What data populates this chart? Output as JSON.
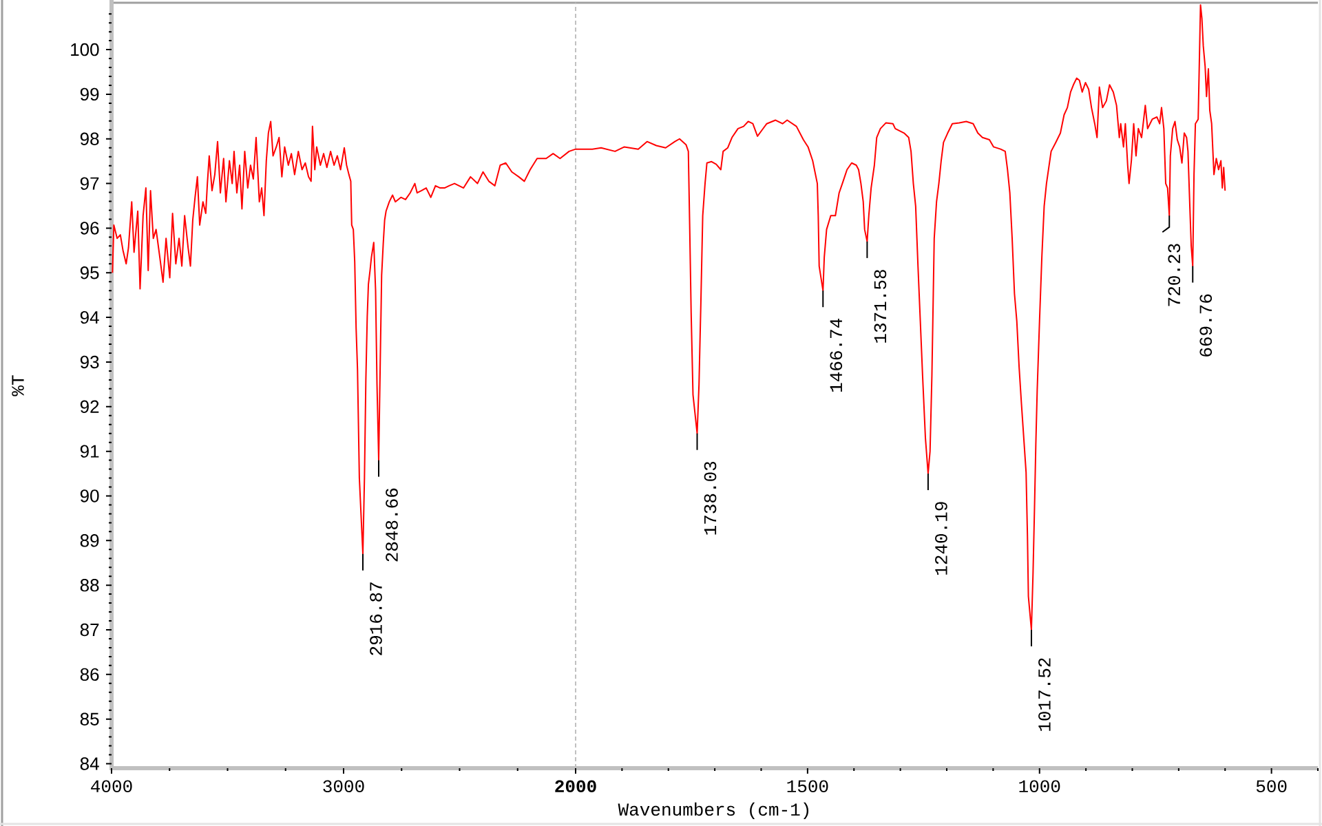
{
  "chart_data": [
    {
      "type": "line",
      "ylabel": "%T",
      "x": [
        3996,
        3990,
        3976,
        3962,
        3951,
        3937,
        3927,
        3913,
        3903,
        3887,
        3877,
        3864,
        3852,
        3842,
        3832,
        3820,
        3808,
        3792,
        3778,
        3765,
        3749,
        3737,
        3723,
        3709,
        3697,
        3685,
        3670,
        3660,
        3650,
        3640,
        3630,
        3620,
        3606,
        3594,
        3587,
        3579,
        3567,
        3555,
        3543,
        3531,
        3517,
        3507,
        3492,
        3480,
        3472,
        3460,
        3448,
        3438,
        3426,
        3413,
        3401,
        3389,
        3377,
        3363,
        3353,
        3343,
        3333,
        3324,
        3314,
        3304,
        3290,
        3278,
        3266,
        3254,
        3238,
        3225,
        3211,
        3195,
        3179,
        3165,
        3151,
        3140,
        3134,
        3124,
        3116,
        3100,
        3086,
        3072,
        3056,
        3041,
        3027,
        3013,
        2997,
        2987,
        2977,
        2969,
        2965,
        2958,
        2952,
        2946,
        2940,
        2932,
        2916.87,
        2910,
        2904,
        2898,
        2893,
        2886,
        2880,
        2870,
        2862,
        2856,
        2848.66,
        2842,
        2836,
        2829,
        2823,
        2817,
        2803,
        2789,
        2777,
        2753,
        2733,
        2713,
        2693,
        2683,
        2664,
        2644,
        2624,
        2604,
        2584,
        2565,
        2545,
        2522,
        2483,
        2453,
        2423,
        2399,
        2374,
        2348,
        2325,
        2301,
        2275,
        2245,
        2221,
        2196,
        2166,
        2127,
        2097,
        2067,
        2028,
        2000
      ],
      "series": [
        {
          "color": "#ff0000",
          "values": [
            95.0,
            96.07,
            95.77,
            95.85,
            95.51,
            95.2,
            95.56,
            96.59,
            95.46,
            96.38,
            94.64,
            96.28,
            96.9,
            95.05,
            96.84,
            95.77,
            95.97,
            95.35,
            94.79,
            95.77,
            94.89,
            96.33,
            95.2,
            95.77,
            95.15,
            96.28,
            95.56,
            95.15,
            96.18,
            96.69,
            97.15,
            96.07,
            96.59,
            96.33,
            97.0,
            97.62,
            96.84,
            97.2,
            97.94,
            96.79,
            97.56,
            96.59,
            97.51,
            97.0,
            97.72,
            96.79,
            97.41,
            96.43,
            97.72,
            96.9,
            97.41,
            97.1,
            98.03,
            96.59,
            96.9,
            96.28,
            97.51,
            98.13,
            98.39,
            97.62,
            97.82,
            98.03,
            97.15,
            97.82,
            97.41,
            97.67,
            97.2,
            97.72,
            97.31,
            97.46,
            97.15,
            97.05,
            98.28,
            97.31,
            97.82,
            97.41,
            97.67,
            97.36,
            97.72,
            97.41,
            97.62,
            97.31,
            97.8,
            97.41,
            97.2,
            97.05,
            96.07,
            95.97,
            95.25,
            93.76,
            92.84,
            90.4,
            88.7,
            90.4,
            92.6,
            94.02,
            94.74,
            95.05,
            95.35,
            95.68,
            94.6,
            92.5,
            90.8,
            93.0,
            94.94,
            95.66,
            96.18,
            96.38,
            96.59,
            96.74,
            96.59,
            96.69,
            96.64,
            96.79,
            97.0,
            96.79,
            96.84,
            96.9,
            96.69,
            96.95,
            96.9,
            96.9,
            96.95,
            97.0,
            96.9,
            97.15,
            97.0,
            97.26,
            97.05,
            96.95,
            97.41,
            97.46,
            97.26,
            97.15,
            97.05,
            97.31,
            97.56,
            97.56,
            97.67,
            97.56,
            97.72,
            97.77
          ]
        }
      ],
      "xlim": [
        4000,
        2000
      ],
      "ylim": [
        83.9,
        101.05
      ],
      "xticks": [
        4000,
        3000
      ],
      "yticks": [
        84,
        85,
        86,
        87,
        88,
        89,
        90,
        91,
        92,
        93,
        94,
        95,
        96,
        97,
        98,
        99,
        100
      ],
      "annotations": [
        {
          "text": "2916.87",
          "x": 2916.87,
          "y": 88.7
        },
        {
          "text": "2848.66",
          "x": 2848.66,
          "y": 90.8
        }
      ]
    },
    {
      "type": "line",
      "xlabel": "Wavenumbers (cm-1)",
      "x": [
        2000,
        1964,
        1945,
        1915,
        1895,
        1865,
        1846,
        1826,
        1806,
        1786,
        1776,
        1762,
        1757,
        1754,
        1751,
        1747,
        1738.03,
        1734,
        1730,
        1726,
        1721,
        1717,
        1707,
        1697,
        1687,
        1682,
        1672,
        1663,
        1650,
        1638,
        1628,
        1618,
        1608,
        1598,
        1588,
        1569,
        1554,
        1544,
        1524,
        1509,
        1499,
        1489,
        1479,
        1477,
        1475,
        1466.74,
        1464,
        1459,
        1450,
        1440,
        1432,
        1425,
        1415,
        1405,
        1395,
        1390,
        1385,
        1380,
        1377,
        1371.58,
        1368,
        1363,
        1356,
        1351,
        1343,
        1331,
        1316,
        1311,
        1292,
        1282,
        1277,
        1272,
        1267,
        1262,
        1257,
        1252,
        1246,
        1240.19,
        1236,
        1232,
        1229,
        1227,
        1222,
        1217,
        1212,
        1207,
        1198,
        1188,
        1173,
        1158,
        1143,
        1133,
        1123,
        1108,
        1099,
        1084,
        1074,
        1069,
        1064,
        1059,
        1054,
        1049,
        1044,
        1039,
        1034,
        1029,
        1026,
        1024,
        1017.52,
        1014,
        1011,
        1008,
        1005,
        1000,
        995,
        990,
        985,
        975,
        965,
        955,
        947,
        940,
        933,
        927,
        920,
        914,
        908,
        901,
        894,
        888,
        881,
        876,
        871,
        864,
        856,
        849,
        841,
        834,
        828,
        825,
        819,
        815,
        810,
        807,
        802,
        797,
        792,
        787,
        780,
        772,
        767,
        757,
        747,
        741,
        737,
        732,
        728,
        724,
        720.23,
        718,
        713,
        708,
        703,
        698,
        693,
        688,
        683,
        680,
        676,
        673,
        669.76,
        667,
        664,
        658,
        653,
        650,
        647,
        643,
        640,
        636,
        633,
        629,
        624,
        619,
        614,
        609,
        606,
        603,
        600
      ],
      "series": [
        {
          "color": "#ff0000",
          "values": [
            97.77,
            97.77,
            97.8,
            97.72,
            97.82,
            97.77,
            97.94,
            97.85,
            97.8,
            97.94,
            98.0,
            97.87,
            97.72,
            95.97,
            94.12,
            92.27,
            91.4,
            92.5,
            94.33,
            96.28,
            97.0,
            97.46,
            97.49,
            97.43,
            97.31,
            97.72,
            97.8,
            98.03,
            98.23,
            98.28,
            98.39,
            98.34,
            98.06,
            98.2,
            98.34,
            98.42,
            98.34,
            98.42,
            98.28,
            97.98,
            97.82,
            97.51,
            97.0,
            96.28,
            95.15,
            94.6,
            95.35,
            95.97,
            96.28,
            96.28,
            96.79,
            97.0,
            97.31,
            97.46,
            97.41,
            97.31,
            97.0,
            96.59,
            95.97,
            95.7,
            96.28,
            96.9,
            97.41,
            98.03,
            98.23,
            98.36,
            98.34,
            98.23,
            98.13,
            98.03,
            97.72,
            97.0,
            96.49,
            95.15,
            93.92,
            92.68,
            91.3,
            90.5,
            91.0,
            92.7,
            94.53,
            95.77,
            96.59,
            97.0,
            97.51,
            97.92,
            98.13,
            98.34,
            98.36,
            98.39,
            98.34,
            98.13,
            98.03,
            97.98,
            97.82,
            97.77,
            97.72,
            97.31,
            96.79,
            95.77,
            94.53,
            93.92,
            92.89,
            92.07,
            91.3,
            90.53,
            89.09,
            87.75,
            87.0,
            88.26,
            89.65,
            91.14,
            92.37,
            93.92,
            95.35,
            96.49,
            97.0,
            97.72,
            97.92,
            98.13,
            98.54,
            98.7,
            99.05,
            99.21,
            99.36,
            99.31,
            99.05,
            99.26,
            99.11,
            98.7,
            98.34,
            98.03,
            99.16,
            98.7,
            98.85,
            99.21,
            99.05,
            98.75,
            98.03,
            98.34,
            97.82,
            98.34,
            97.41,
            97.0,
            97.51,
            98.34,
            97.62,
            98.23,
            98.03,
            98.75,
            98.23,
            98.44,
            98.49,
            98.34,
            98.7,
            98.23,
            97.0,
            96.9,
            96.28,
            97.62,
            98.23,
            98.39,
            97.98,
            97.82,
            97.46,
            98.13,
            98.03,
            97.72,
            96.49,
            95.6,
            95.15,
            97.2,
            98.34,
            98.44,
            101.0,
            100.7,
            100.08,
            99.62,
            98.95,
            99.57,
            98.64,
            98.34,
            97.2,
            97.56,
            97.31,
            97.51,
            96.9,
            97.36,
            96.84
          ]
        }
      ],
      "xlim": [
        2000,
        400
      ],
      "ylim": [
        83.9,
        101.05
      ],
      "xticks": [
        2000,
        1500,
        1000,
        500
      ],
      "tick_labels": "x",
      "ref_lines": [
        {
          "axis": "x",
          "value": 2000,
          "color": "#c0c0c0",
          "line_style": "dashed"
        }
      ],
      "annotations": [
        {
          "text": "1738.03",
          "x": 1738.03,
          "y": 91.4
        },
        {
          "text": "1466.74",
          "x": 1466.74,
          "y": 94.6
        },
        {
          "text": "1371.58",
          "x": 1371.58,
          "y": 95.7
        },
        {
          "text": "1240.19",
          "x": 1240.19,
          "y": 90.5
        },
        {
          "text": "1017.52",
          "x": 1017.52,
          "y": 87.0
        },
        {
          "text": "720.23",
          "x": 720.23,
          "y": 96.28
        },
        {
          "text": "669.76",
          "x": 669.76,
          "y": 95.15
        }
      ]
    }
  ]
}
